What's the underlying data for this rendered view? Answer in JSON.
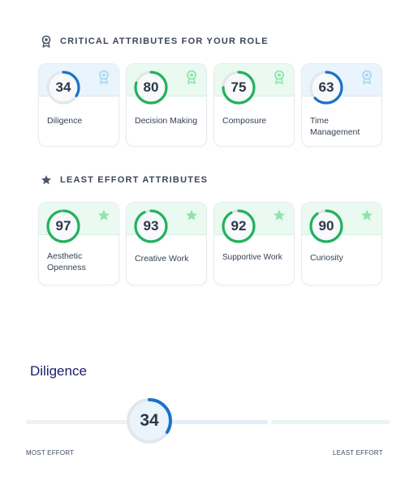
{
  "critical": {
    "title": "CRITICAL ATTRIBUTES FOR YOUR ROLE",
    "cards": [
      {
        "score": "34",
        "label": "Diligence",
        "percent": 34
      },
      {
        "score": "80",
        "label": "Decision Making",
        "percent": 80
      },
      {
        "score": "75",
        "label": "Composure",
        "percent": 75
      },
      {
        "score": "63",
        "label": "Time Management",
        "percent": 63
      }
    ]
  },
  "least_effort": {
    "title": "LEAST EFFORT ATTRIBUTES",
    "cards": [
      {
        "score": "97",
        "label": "Aesthetic Openness",
        "percent": 97
      },
      {
        "score": "93",
        "label": "Creative Work",
        "percent": 93
      },
      {
        "score": "92",
        "label": "Supportive Work",
        "percent": 92
      },
      {
        "score": "90",
        "label": "Curiosity",
        "percent": 90
      }
    ]
  },
  "detail": {
    "title": "Diligence",
    "score": "34",
    "percent": 34,
    "scale_left": "MOST EFFORT",
    "scale_right": "LEAST EFFORT"
  },
  "icons": {
    "critical_section": "award-ribbon-icon",
    "least_effort_section": "star-icon",
    "critical_badge": "award-ribbon-icon",
    "least_effort_badge": "star-icon"
  },
  "colors": {
    "blue": "#1a73c8",
    "green": "#22b25d",
    "track": "#e3e7ec",
    "title": "#1d1b6b"
  }
}
